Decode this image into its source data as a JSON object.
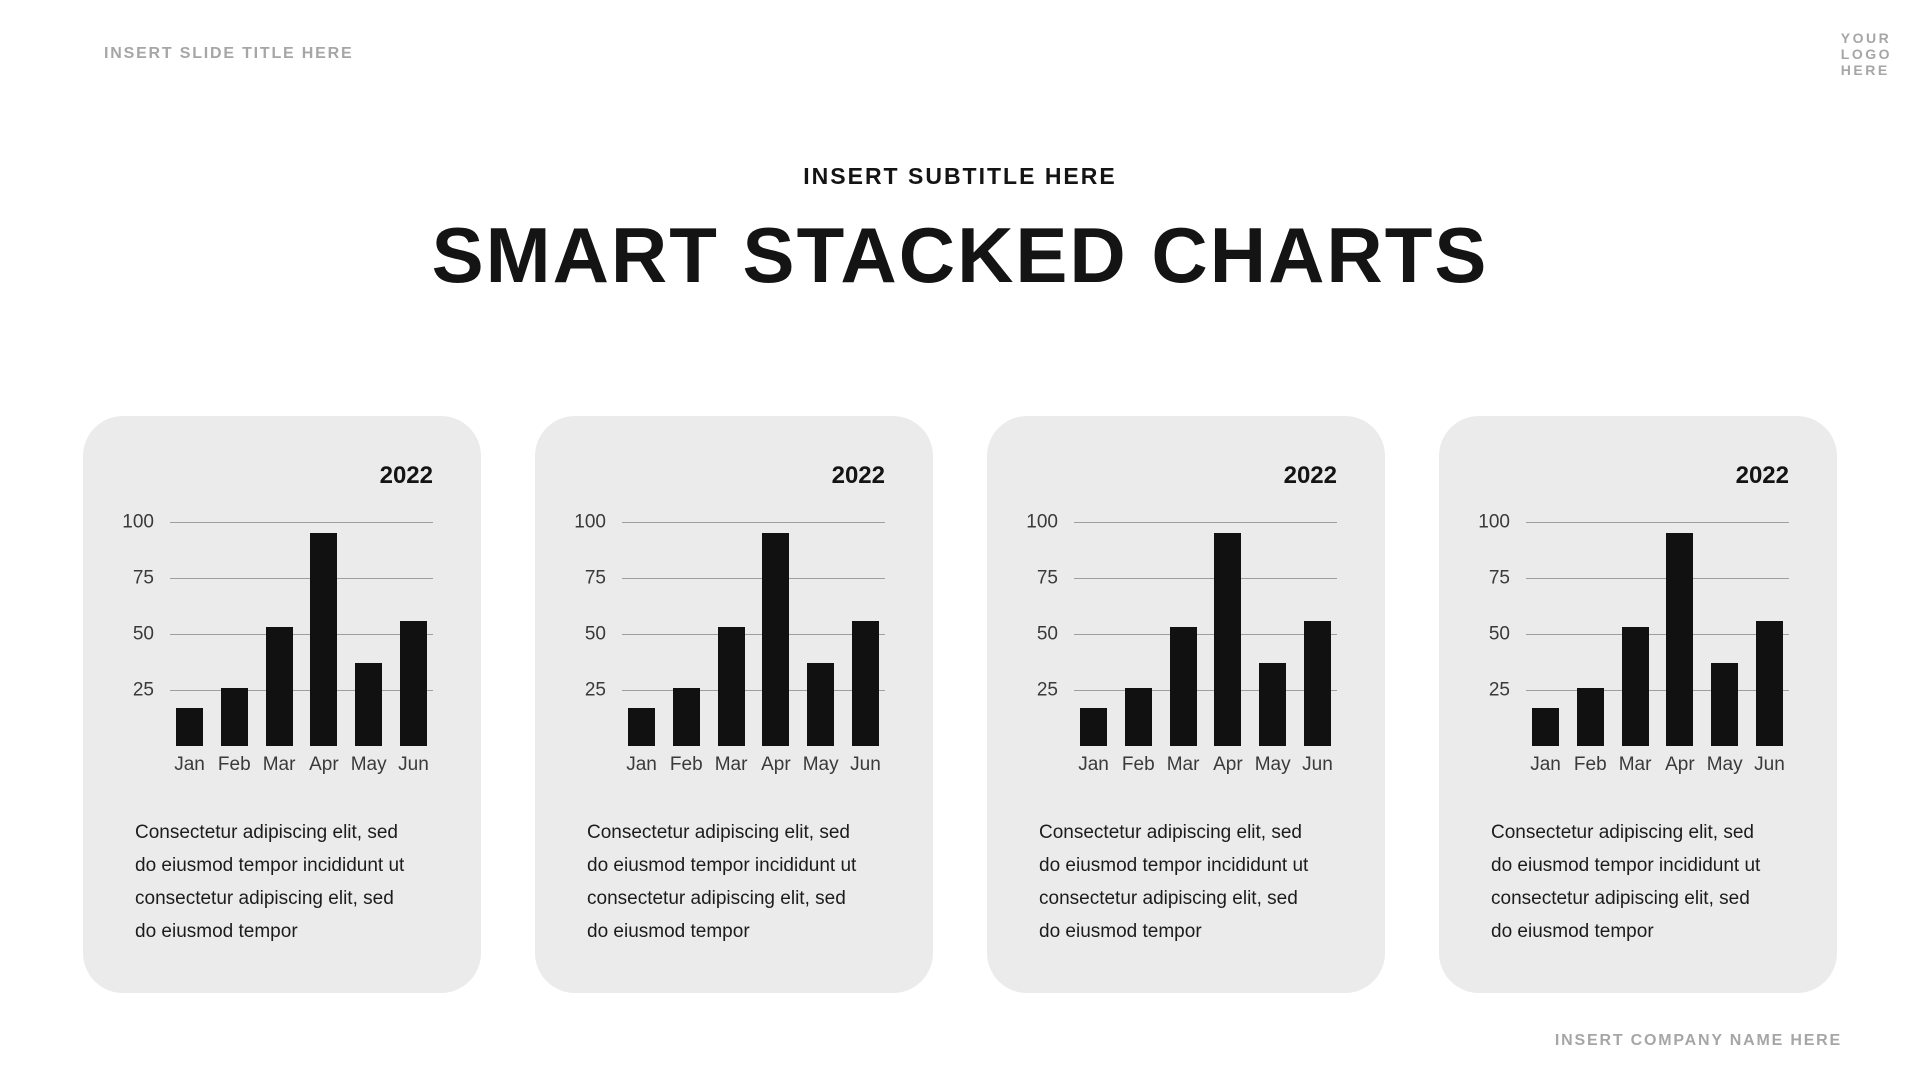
{
  "header": {
    "slide_title": "INSERT SLIDE TITLE HERE",
    "logo": "YOUR\nLOGO\nHERE"
  },
  "title_block": {
    "subtitle": "INSERT SUBTITLE HERE",
    "title": "SMART STACKED CHARTS"
  },
  "footer": {
    "company": "INSERT COMPANY NAME HERE"
  },
  "colors": {
    "card_bg": "#ebebeb",
    "bar": "#111111",
    "muted": "#a6a6a6",
    "axis_text": "#3a3a3a",
    "gridline": "#9e9e9e",
    "body_text": "#1c1c1c"
  },
  "cards": [
    {
      "year": "2022",
      "description": "Consectetur adipiscing elit, sed do eiusmod tempor incididunt ut consectetur adipiscing elit, sed do eiusmod tempor"
    },
    {
      "year": "2022",
      "description": "Consectetur adipiscing elit, sed do eiusmod tempor incididunt ut consectetur adipiscing elit, sed do eiusmod tempor"
    },
    {
      "year": "2022",
      "description": "Consectetur adipiscing elit, sed do eiusmod tempor incididunt ut consectetur adipiscing elit, sed do eiusmod tempor"
    },
    {
      "year": "2022",
      "description": "Consectetur adipiscing elit, sed do eiusmod tempor incididunt ut consectetur adipiscing elit, sed do eiusmod tempor"
    }
  ],
  "chart_data": [
    {
      "type": "bar",
      "title": "2022",
      "categories": [
        "Jan",
        "Feb",
        "Mar",
        "Apr",
        "May",
        "Jun"
      ],
      "values": [
        17,
        26,
        53,
        95,
        37,
        56
      ],
      "yticks": [
        25,
        50,
        75,
        100
      ],
      "ylim": [
        0,
        100
      ],
      "grid": true,
      "legend": "none"
    },
    {
      "type": "bar",
      "title": "2022",
      "categories": [
        "Jan",
        "Feb",
        "Mar",
        "Apr",
        "May",
        "Jun"
      ],
      "values": [
        17,
        26,
        53,
        95,
        37,
        56
      ],
      "yticks": [
        25,
        50,
        75,
        100
      ],
      "ylim": [
        0,
        100
      ],
      "grid": true,
      "legend": "none"
    },
    {
      "type": "bar",
      "title": "2022",
      "categories": [
        "Jan",
        "Feb",
        "Mar",
        "Apr",
        "May",
        "Jun"
      ],
      "values": [
        17,
        26,
        53,
        95,
        37,
        56
      ],
      "yticks": [
        25,
        50,
        75,
        100
      ],
      "ylim": [
        0,
        100
      ],
      "grid": true,
      "legend": "none"
    },
    {
      "type": "bar",
      "title": "2022",
      "categories": [
        "Jan",
        "Feb",
        "Mar",
        "Apr",
        "May",
        "Jun"
      ],
      "values": [
        17,
        26,
        53,
        95,
        37,
        56
      ],
      "yticks": [
        25,
        50,
        75,
        100
      ],
      "ylim": [
        0,
        100
      ],
      "grid": true,
      "legend": "none"
    }
  ]
}
